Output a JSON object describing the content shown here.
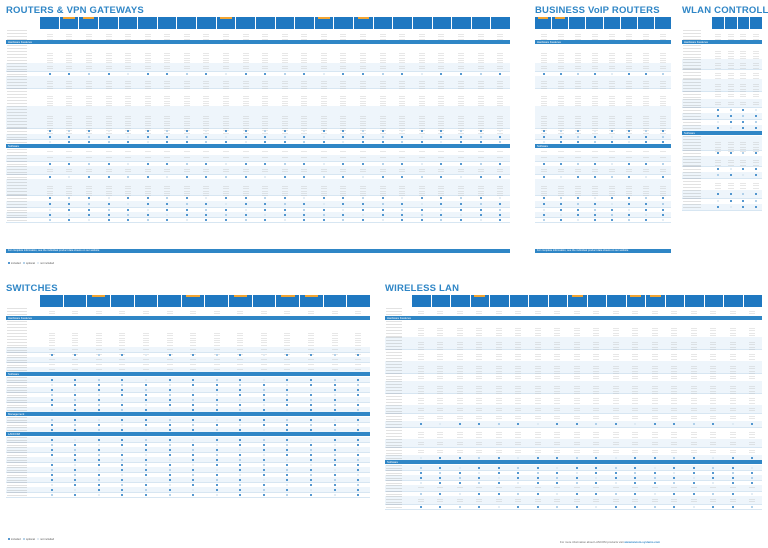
{
  "sections": {
    "routers": {
      "title": "ROUTERS & VPN GATEWAYS",
      "band_features": "Hardware Features",
      "band_software": "Software",
      "footer": "For complete information, see the individual product data sheets on our website",
      "cols": 24
    },
    "voip": {
      "title": "BUSINESS VoIP ROUTERS",
      "band_features": "Hardware Features",
      "band_software": "Software",
      "footer": "For complete information, see the individual product data sheets on our website",
      "cols": 8
    },
    "wlanc": {
      "title": "WLAN CONTROLLERS",
      "band_features": "Hardware Features",
      "band_software": "Software",
      "cols": 4
    },
    "switches": {
      "title": "SWITCHES",
      "band_features": "Hardware Features",
      "band_software": "Software",
      "band_management": "Management",
      "band_lancom": "LANCOM",
      "cols": 14
    },
    "wlan": {
      "title": "WIRELESS LAN",
      "band_features": "Hardware Features",
      "band_software": "Software",
      "band_lancom": "LANCOM",
      "cols": 18
    }
  },
  "labels": {
    "street_price": "Street price",
    "ethernet_ports": "Ethernet ports",
    "vpn_channels": "VPN channels",
    "sfp": "SFP port",
    "wlan": "WLAN",
    "poe": "PoE",
    "management": "Management"
  },
  "legend": {
    "included": "included",
    "optional": "optional",
    "not_included": "not included"
  },
  "colors": {
    "accent": "#2f86c6",
    "header": "#1f78c1",
    "new_flag": "#f2a533",
    "row_alt": "#eef5fb"
  },
  "bottom_note": {
    "prefix": "For more information about LANCOM products visit",
    "url": "www.lancom-systems.com"
  }
}
